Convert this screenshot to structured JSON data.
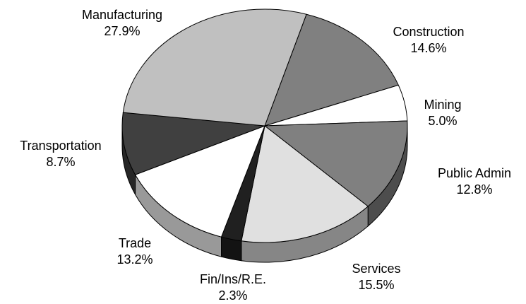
{
  "chart_data": {
    "type": "pie",
    "categories": [
      "Construction",
      "Mining",
      "Public Admin",
      "Services",
      "Fin/Ins/R.E.",
      "Trade",
      "Transportation",
      "Manufacturing"
    ],
    "values": [
      14.6,
      5.0,
      12.8,
      15.5,
      2.3,
      13.2,
      8.7,
      27.9
    ],
    "value_labels": [
      "14.6%",
      "5.0%",
      "12.8%",
      "15.5%",
      "2.3%",
      "13.2%",
      "8.7%",
      "27.9%"
    ],
    "colors": [
      "#808080",
      "#ffffff",
      "#808080",
      "#e0e0e0",
      "#202020",
      "#ffffff",
      "#404040",
      "#c0c0c0"
    ]
  }
}
